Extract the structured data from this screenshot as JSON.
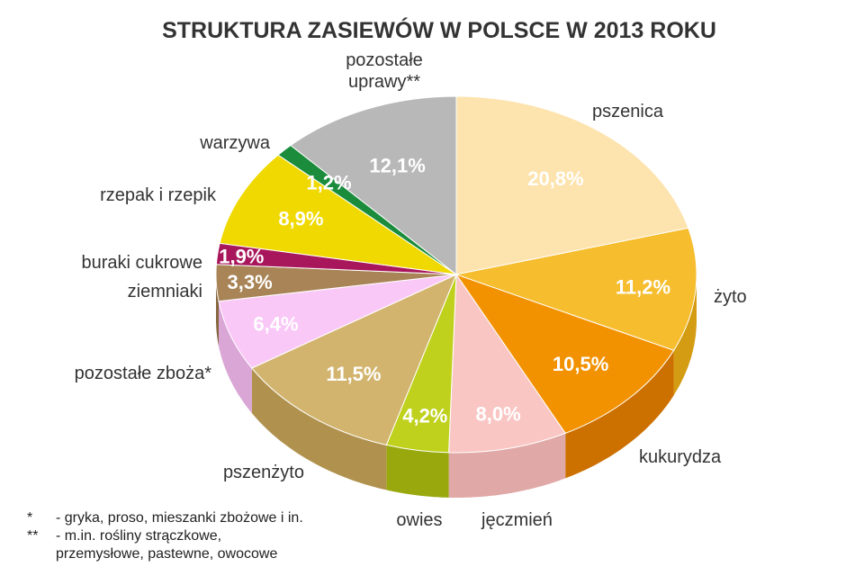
{
  "chart_data": {
    "type": "pie",
    "title": "STRUKTURA ZASIEWÓW W POLSCE W 2013 ROKU",
    "slices": [
      {
        "label": "pszenica",
        "value": 20.8,
        "value_label": "20,8%",
        "color": "#fde3ad",
        "side_color": "#e6c98c"
      },
      {
        "label": "żyto",
        "value": 11.2,
        "value_label": "11,2%",
        "color": "#f6bd2f",
        "side_color": "#d49c12"
      },
      {
        "label": "kukurydza",
        "value": 10.5,
        "value_label": "10,5%",
        "color": "#f39200",
        "side_color": "#cc7000"
      },
      {
        "label": "jęczmień",
        "value": 8.0,
        "value_label": "8,0%",
        "color": "#f9c6c4",
        "side_color": "#e0a8a6"
      },
      {
        "label": "owies",
        "value": 4.2,
        "value_label": "4,2%",
        "color": "#bfd11c",
        "side_color": "#98a80d"
      },
      {
        "label": "pszenżyto",
        "value": 11.5,
        "value_label": "11,5%",
        "color": "#d2b46e",
        "side_color": "#b0924e"
      },
      {
        "label": "pozostałe zboża*",
        "value": 6.4,
        "value_label": "6,4%",
        "color": "#f9c8f7",
        "side_color": "#d9a6d6"
      },
      {
        "label": "ziemniaki",
        "value": 3.3,
        "value_label": "3,3%",
        "color": "#a88456",
        "side_color": "#86663e"
      },
      {
        "label": "buraki cukrowe",
        "value": 1.9,
        "value_label": "1,9%",
        "color": "#a8175c",
        "side_color": "#84104a"
      },
      {
        "label": "rzepak i rzepik",
        "value": 8.9,
        "value_label": "8,9%",
        "color": "#f0d900",
        "side_color": "#c8b400"
      },
      {
        "label": "warzywa",
        "value": 1.2,
        "value_label": "1,2%",
        "color": "#1a8c3c",
        "side_color": "#126a2c"
      },
      {
        "label": "pozostałe uprawy**",
        "label_lines": [
          "pozostałe",
          "uprawy**"
        ],
        "value": 12.1,
        "value_label": "12,1%",
        "color": "#b8b8b8",
        "side_color": "#959595"
      }
    ]
  },
  "footnotes": [
    {
      "mark": "*",
      "lines": [
        "- gryka, proso, mieszanki zbożowe i in."
      ]
    },
    {
      "mark": "**",
      "lines": [
        "- m.in. rośliny strączkowe,",
        "przemysłowe, pastewne, owocowe"
      ]
    }
  ]
}
